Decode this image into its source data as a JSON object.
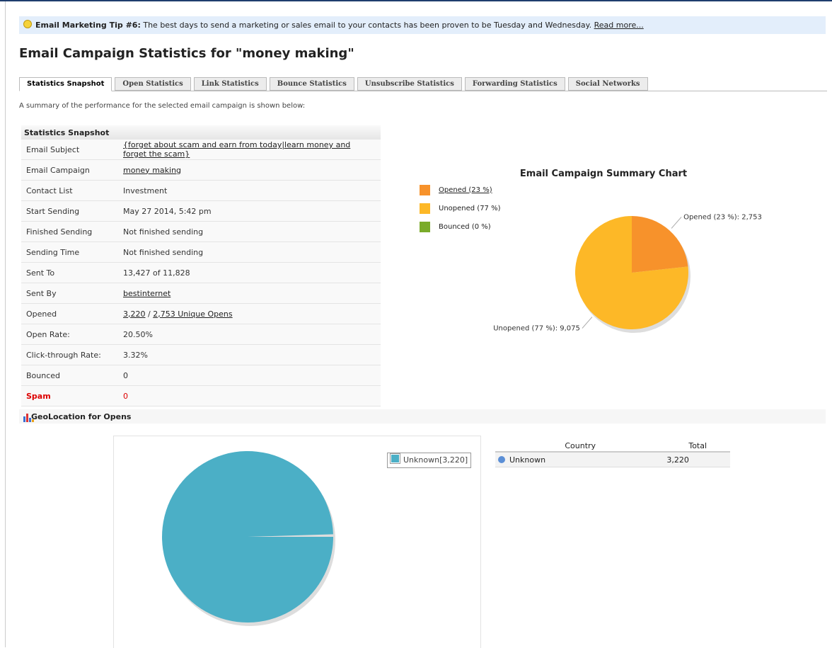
{
  "tip": {
    "title": "Email Marketing Tip #6:",
    "text": "The best days to send a marketing or sales email to your contacts has been proven to be Tuesday and Wednesday.",
    "link": "Read more..."
  },
  "page_title": "Email Campaign Statistics for \"money making\"",
  "tabs": {
    "items": [
      "Statistics Snapshot",
      "Open Statistics",
      "Link Statistics",
      "Bounce Statistics",
      "Unsubscribe Statistics",
      "Forwarding Statistics",
      "Social Networks"
    ],
    "active": 0
  },
  "description": "A summary of the performance for the selected email campaign is shown below:",
  "stats": {
    "title": "Statistics Snapshot",
    "rows": [
      {
        "label": "Email Subject",
        "value": "{forget about scam and earn from today|learn money and forget the scam}",
        "link": true
      },
      {
        "label": "Email Campaign",
        "value": "money making",
        "link": true
      },
      {
        "label": "Contact List",
        "value": "Investment"
      },
      {
        "label": "Start Sending",
        "value": "May 27 2014, 5:42 pm"
      },
      {
        "label": "Finished Sending",
        "value": "Not finished sending"
      },
      {
        "label": "Sending Time",
        "value": "Not finished sending"
      },
      {
        "label": "Sent To",
        "value": "13,427 of 11,828"
      },
      {
        "label": "Sent By",
        "value": "bestinternet",
        "link": true
      },
      {
        "label": "Opened",
        "links": [
          "3,220",
          "2,753 Unique Opens"
        ],
        "separator": "/"
      },
      {
        "label": "Open Rate:",
        "value": "20.50%"
      },
      {
        "label": "Click-through Rate:",
        "value": "3.32%"
      },
      {
        "label": "Bounced",
        "value": "0"
      },
      {
        "label": "Spam",
        "value": "0",
        "alert": true
      }
    ]
  },
  "summary_chart": {
    "type": "pie",
    "title": "Email Campaign Summary Chart",
    "series": [
      {
        "name": "Opened (23 %)",
        "color": "#f7922b",
        "value": 2753,
        "value_label": "Opened (23 %): 2,753",
        "link": true
      },
      {
        "name": "Unopened (77 %)",
        "color": "#fdb827",
        "value": 9075,
        "value_label": "Unopened (77 %): 9,075"
      },
      {
        "name": "Bounced (0 %)",
        "color": "#7aab2a",
        "value": 0
      }
    ]
  },
  "geo": {
    "title": "GeoLocation for Opens",
    "chart": {
      "type": "pie",
      "series": [
        {
          "name": "Unknown[3,220]",
          "color": "#4bafc6",
          "value": 3220
        }
      ]
    },
    "table": {
      "headers": [
        "Country",
        "Total"
      ],
      "rows": [
        [
          "Unknown",
          "3,220"
        ]
      ]
    }
  }
}
